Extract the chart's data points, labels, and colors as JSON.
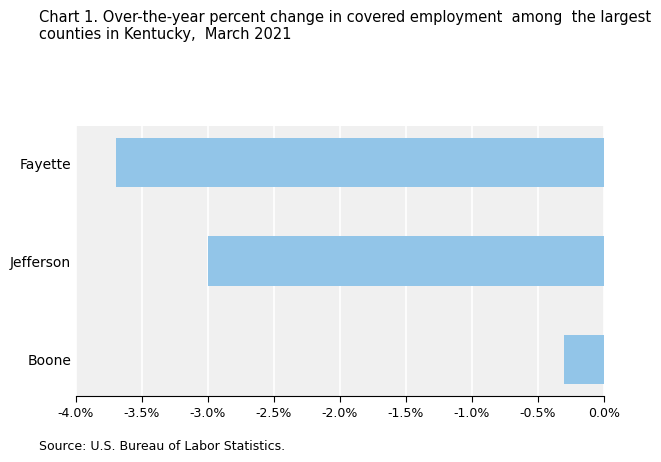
{
  "title_line1": "Chart 1. Over-the-year percent change in covered employment  among  the largest",
  "title_line2": "counties in Kentucky,  March 2021",
  "categories": [
    "Boone",
    "Jefferson",
    "Fayette"
  ],
  "values": [
    -0.3,
    -3.0,
    -3.7
  ],
  "bar_color": "#92C5E8",
  "xlim": [
    -4.0,
    0.0
  ],
  "xticks": [
    -4.0,
    -3.5,
    -3.0,
    -2.5,
    -2.0,
    -1.5,
    -1.0,
    -0.5,
    0.0
  ],
  "source": "Source: U.S. Bureau of Labor Statistics.",
  "background_color": "#ffffff",
  "title_fontsize": 10.5,
  "source_fontsize": 9,
  "tick_fontsize": 9,
  "ylabel_fontsize": 10
}
